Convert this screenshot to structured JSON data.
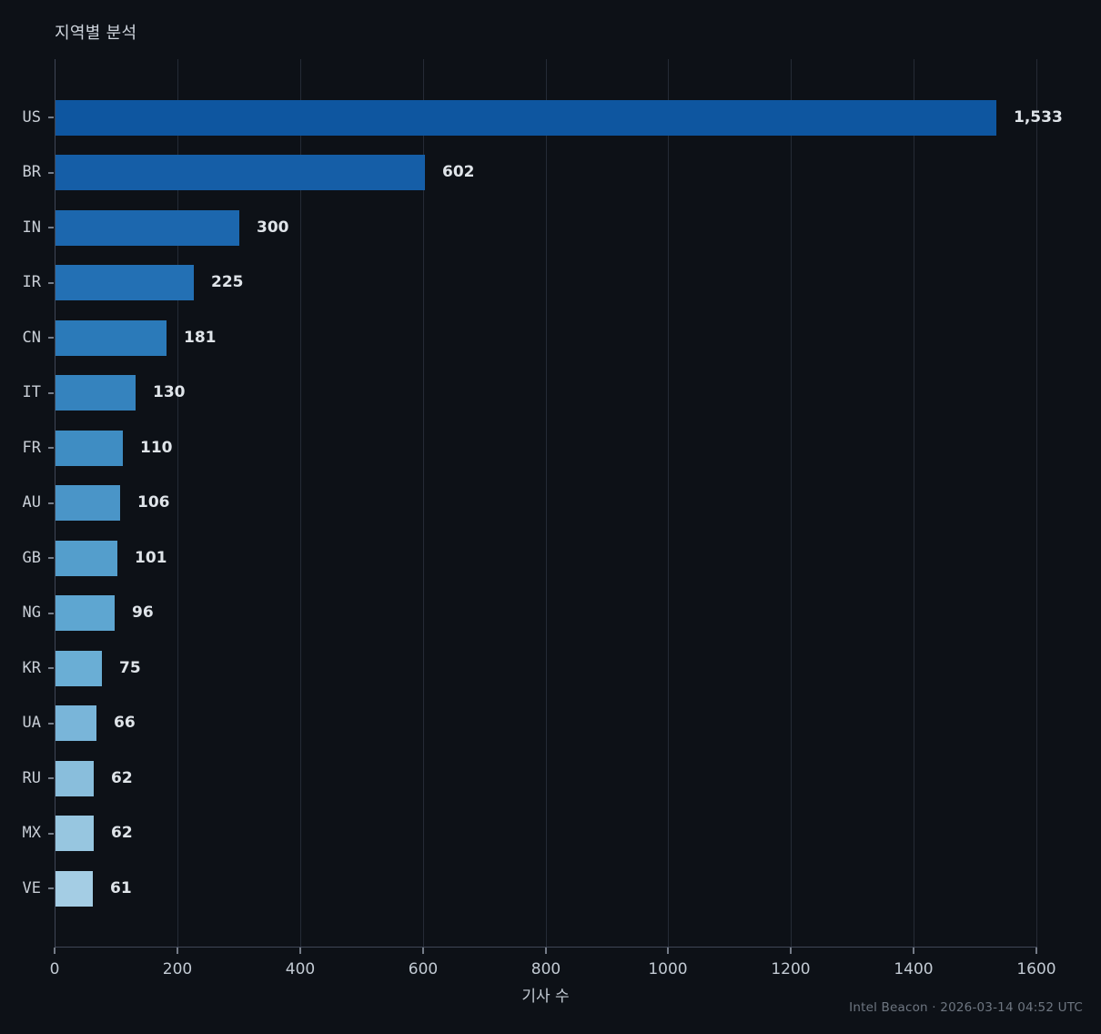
{
  "header": {
    "title": "지역별 분석"
  },
  "footer": {
    "text": "Intel Beacon · 2026-03-14 04:52 UTC"
  },
  "chart_data": {
    "type": "bar",
    "orientation": "horizontal",
    "title": "지역별 분석",
    "xlabel": "기사 수",
    "categories": [
      "US",
      "BR",
      "IN",
      "IR",
      "CN",
      "IT",
      "FR",
      "AU",
      "GB",
      "NG",
      "KR",
      "UA",
      "RU",
      "MX",
      "VE"
    ],
    "values": [
      1533,
      602,
      300,
      225,
      181,
      130,
      110,
      106,
      101,
      96,
      75,
      66,
      62,
      62,
      61
    ],
    "value_labels": [
      "1,533",
      "602",
      "300",
      "225",
      "181",
      "130",
      "110",
      "106",
      "101",
      "96",
      "75",
      "66",
      "62",
      "62",
      "61"
    ],
    "bar_colors": [
      "#0e56a0",
      "#155ea7",
      "#1c67ae",
      "#2370b4",
      "#2b7ab9",
      "#3583be",
      "#3f8dc3",
      "#4a95c8",
      "#549ecc",
      "#5ea6d1",
      "#6aaed5",
      "#79b5d9",
      "#89bedc",
      "#97c6e0",
      "#a4cde4"
    ],
    "xlim": [
      0,
      1600
    ],
    "xticks": [
      0,
      200,
      400,
      600,
      800,
      1000,
      1200,
      1400,
      1600
    ],
    "grid": "vertical-gridlines-on",
    "legend": "none",
    "colors": {
      "background": "#0d1117",
      "gridline": "#252b36",
      "axis_spine": "#3f4656",
      "tick_mark": "#757c88",
      "tick_label": "#c2cad3",
      "category_label": "#c8ced6",
      "value_label": "#dfe4e9",
      "title": "#ced4dc",
      "footer": "#6e7681"
    }
  }
}
